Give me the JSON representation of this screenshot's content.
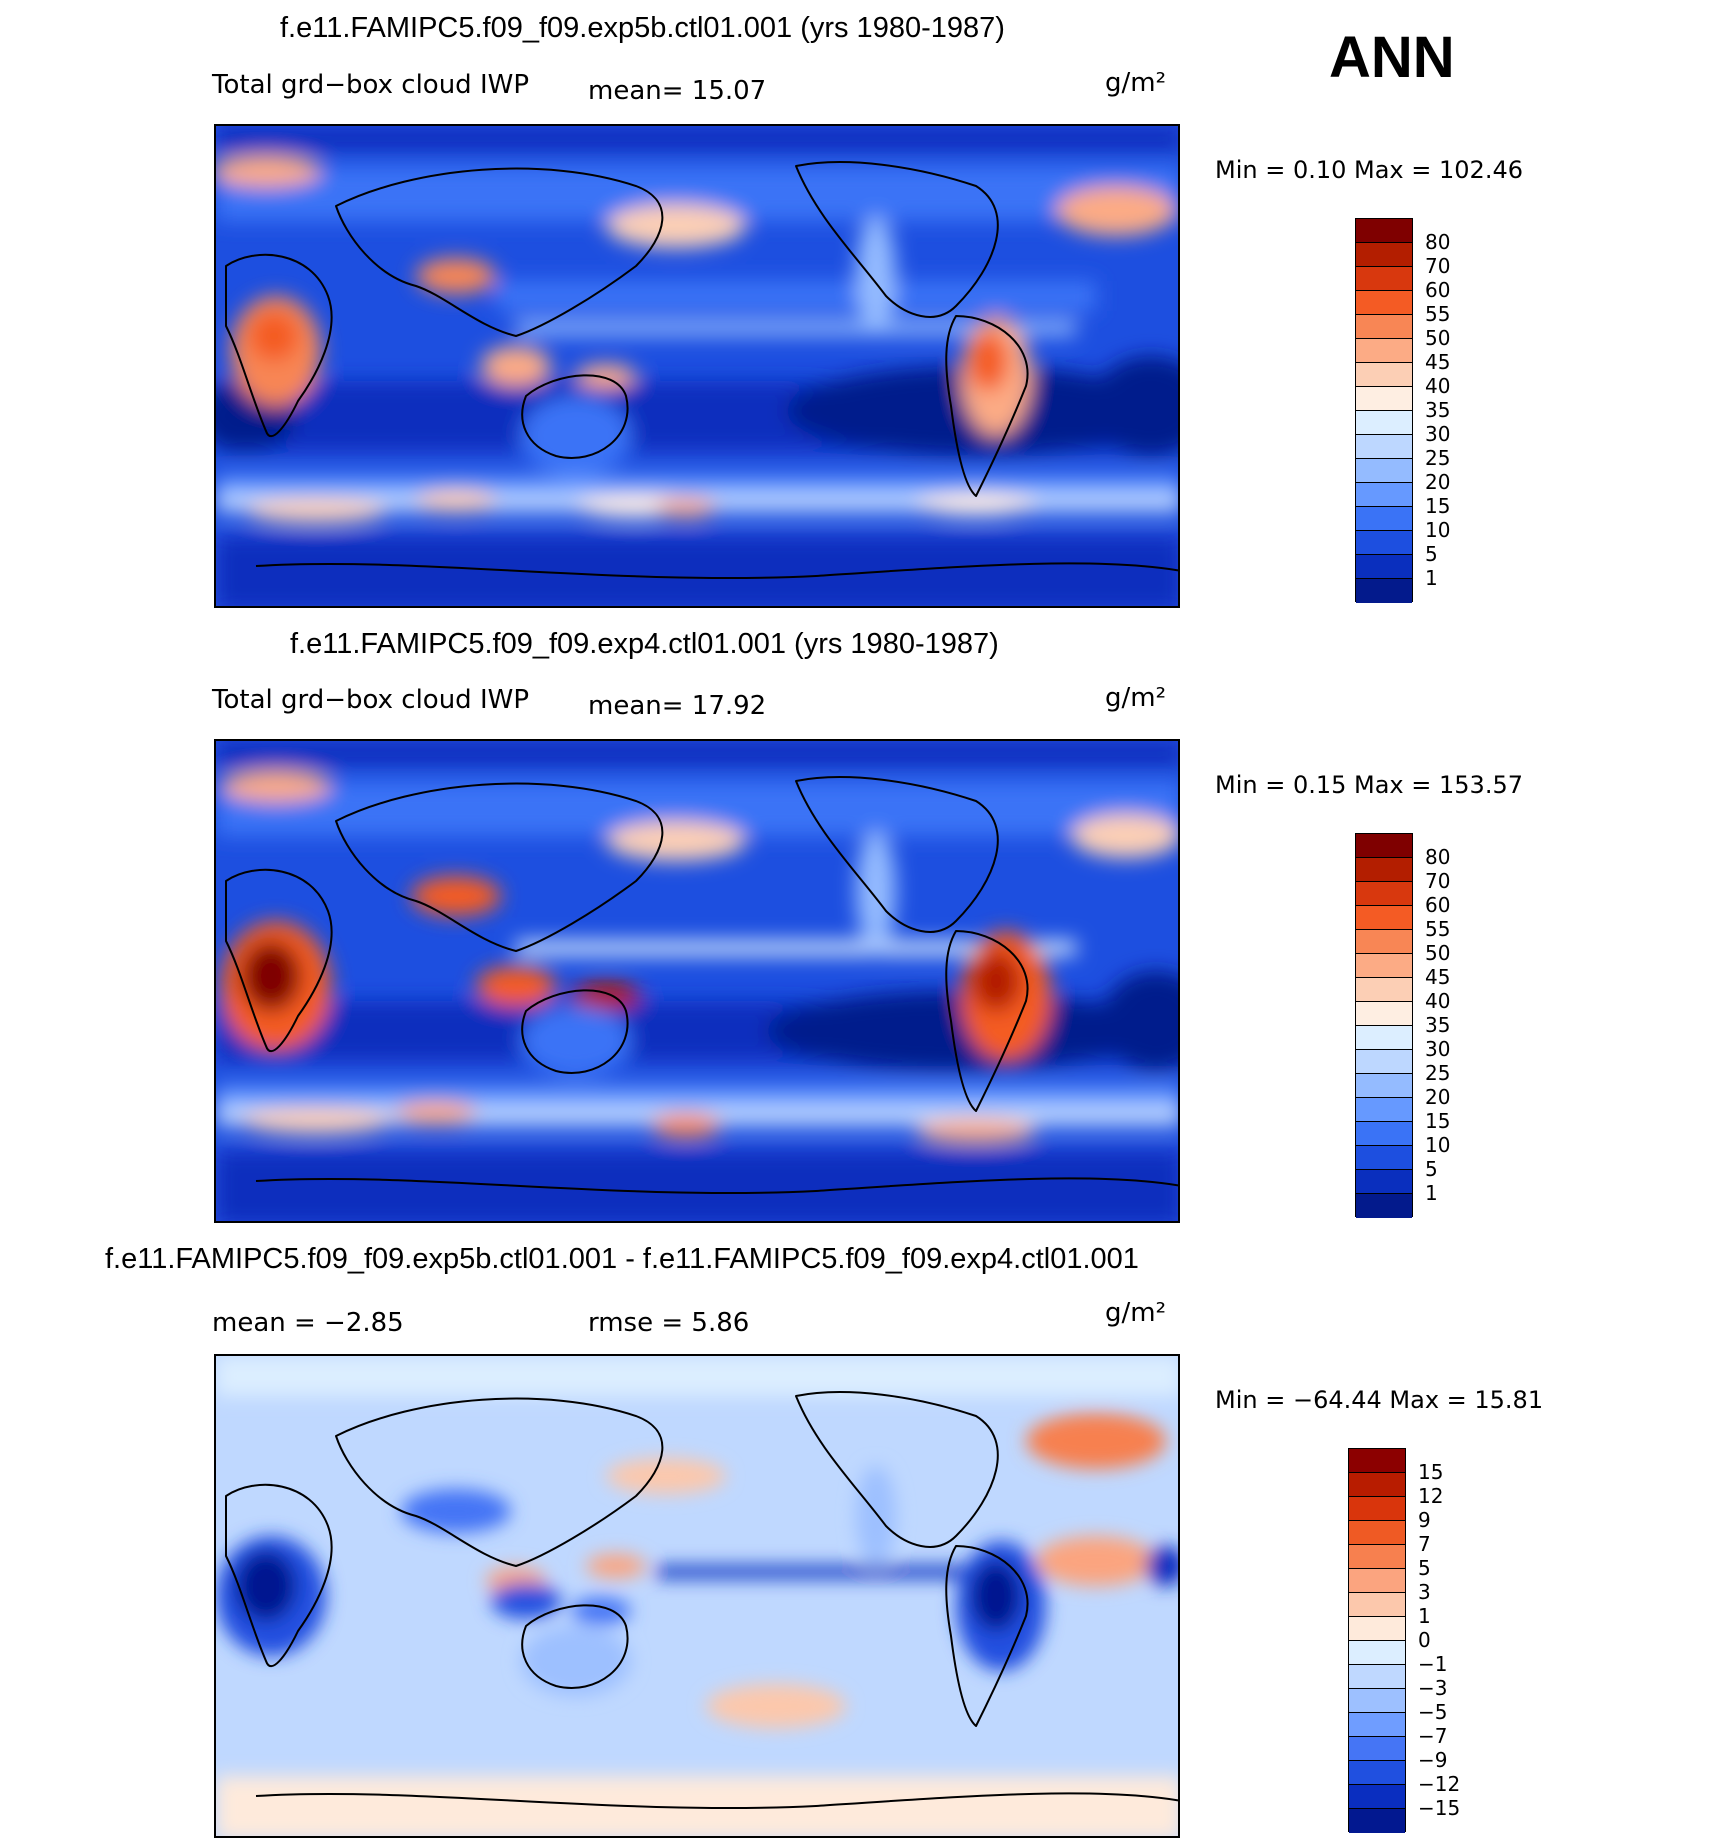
{
  "season": "ANN",
  "panels": [
    {
      "title": "f.e11.FAMIPC5.f09_f09.exp5b.ctl01.001 (yrs 1980-1987)",
      "variable": "Total grd−box cloud IWP",
      "stat": "mean=   15.07",
      "units": "g/m²",
      "minmax": "Min =    0.10  Max  =  102.46",
      "colorbar": {
        "levels": [
          "80",
          "70",
          "60",
          "55",
          "50",
          "45",
          "40",
          "35",
          "30",
          "25",
          "20",
          "15",
          "10",
          "5",
          "1"
        ],
        "colors": [
          "#7f0000",
          "#b31e00",
          "#d8380e",
          "#f45b24",
          "#f88655",
          "#fcab85",
          "#fccfb5",
          "#feeee2",
          "#dceeff",
          "#bdd7ff",
          "#94bbff",
          "#6699ff",
          "#3a73f6",
          "#1d4fe0",
          "#0a2fbe",
          "#031a8c"
        ]
      }
    },
    {
      "title": "f.e11.FAMIPC5.f09_f09.exp4.ctl01.001 (yrs 1980-1987)",
      "variable": "Total grd−box cloud IWP",
      "stat": "mean=   17.92",
      "units": "g/m²",
      "minmax": "Min =    0.15  Max  =  153.57",
      "colorbar": {
        "levels": [
          "80",
          "70",
          "60",
          "55",
          "50",
          "45",
          "40",
          "35",
          "30",
          "25",
          "20",
          "15",
          "10",
          "5",
          "1"
        ],
        "colors": [
          "#7f0000",
          "#b31e00",
          "#d8380e",
          "#f45b24",
          "#f88655",
          "#fcab85",
          "#fccfb5",
          "#feeee2",
          "#dceeff",
          "#bdd7ff",
          "#94bbff",
          "#6699ff",
          "#3a73f6",
          "#1d4fe0",
          "#0a2fbe",
          "#031a8c"
        ]
      }
    },
    {
      "title": "f.e11.FAMIPC5.f09_f09.exp5b.ctl01.001 - f.e11.FAMIPC5.f09_f09.exp4.ctl01.001",
      "stat": "mean  =    −2.85",
      "stat2": "rmse  =     5.86",
      "units": "g/m²",
      "minmax": "Min  =  −64.44  Max  =    15.81",
      "colorbar": {
        "levels": [
          "15",
          "12",
          "9",
          "7",
          "5",
          "3",
          "1",
          "0",
          "−1",
          "−3",
          "−5",
          "−7",
          "−9",
          "−12",
          "−15"
        ],
        "colors": [
          "#8c0000",
          "#b81c00",
          "#d9350c",
          "#ef5a24",
          "#f7804f",
          "#fba47f",
          "#fcc8ac",
          "#feeadb",
          "#dceeff",
          "#bfd8ff",
          "#9dc0ff",
          "#6f9dff",
          "#4575f5",
          "#2050e0",
          "#0a2ec0",
          "#021890"
        ]
      }
    }
  ]
}
